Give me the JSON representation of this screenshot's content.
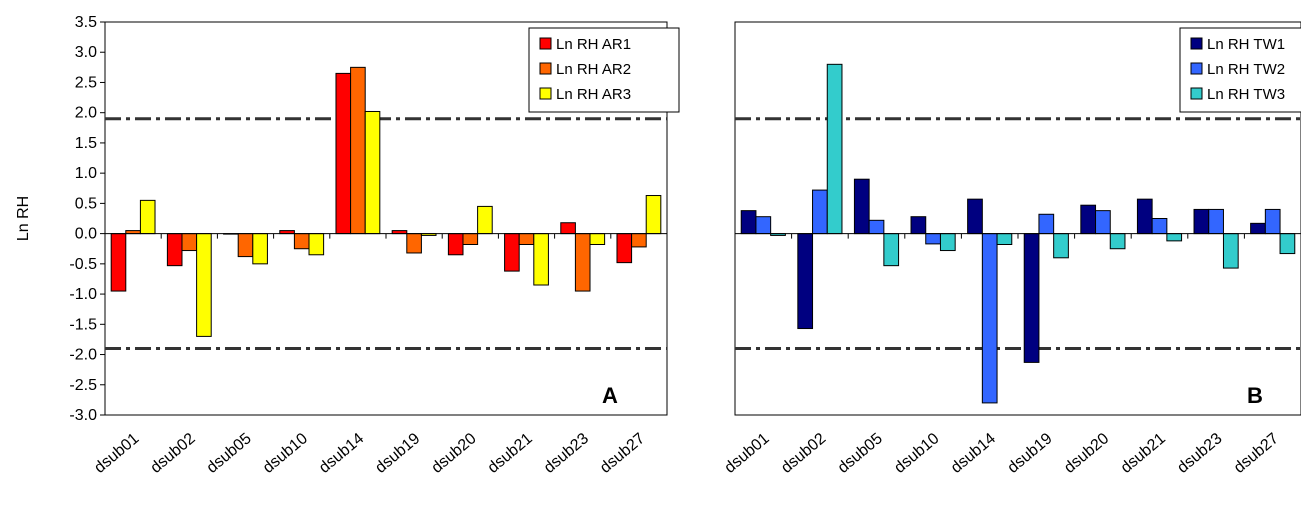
{
  "chart_data": [
    {
      "type": "bar",
      "panel_label": "A",
      "ylabel": "Ln RH",
      "ylim": [
        -3.0,
        3.5
      ],
      "y_ticks": [
        "3.5",
        "3.0",
        "2.5",
        "2.0",
        "1.5",
        "1.0",
        "0.5",
        "0.0",
        "-0.5",
        "-1.0",
        "-1.5",
        "-2.0",
        "-2.5",
        "-3.0"
      ],
      "categories": [
        "dsub01",
        "dsub02",
        "dsub05",
        "dsub10",
        "dsub14",
        "dsub19",
        "dsub20",
        "dsub21",
        "dsub23",
        "dsub27"
      ],
      "threshold_lines": [
        1.9,
        -1.9
      ],
      "legend_position": "top-right",
      "series": [
        {
          "name": "Ln RH AR1",
          "color": "#ff0000",
          "values": [
            -0.95,
            -0.53,
            0.0,
            0.05,
            2.65,
            0.05,
            -0.35,
            -0.62,
            0.18,
            -0.48
          ]
        },
        {
          "name": "Ln RH AR2",
          "color": "#ff6600",
          "values": [
            0.05,
            -0.28,
            -0.38,
            -0.25,
            2.75,
            -0.32,
            -0.18,
            -0.18,
            -0.95,
            -0.22
          ]
        },
        {
          "name": "Ln RH AR3",
          "color": "#ffff00",
          "values": [
            0.55,
            -1.7,
            -0.5,
            -0.35,
            2.02,
            -0.03,
            0.45,
            -0.85,
            -0.18,
            0.63
          ]
        }
      ]
    },
    {
      "type": "bar",
      "panel_label": "B",
      "ylim": [
        -3.0,
        3.5
      ],
      "categories": [
        "dsub01",
        "dsub02",
        "dsub05",
        "dsub10",
        "dsub14",
        "dsub19",
        "dsub20",
        "dsub21",
        "dsub23",
        "dsub27"
      ],
      "threshold_lines": [
        1.9,
        -1.9
      ],
      "legend_position": "top-right",
      "series": [
        {
          "name": "Ln RH TW1",
          "color": "#000080",
          "values": [
            0.38,
            -1.57,
            0.9,
            0.28,
            0.57,
            -2.13,
            0.47,
            0.57,
            0.4,
            0.17
          ]
        },
        {
          "name": "Ln RH TW2",
          "color": "#3366ff",
          "values": [
            0.28,
            0.72,
            0.22,
            -0.17,
            -2.8,
            0.32,
            0.38,
            0.25,
            0.4,
            0.4
          ]
        },
        {
          "name": "Ln RH TW3",
          "color": "#33cccc",
          "values": [
            -0.03,
            2.8,
            -0.53,
            -0.28,
            -0.18,
            -0.4,
            -0.25,
            -0.12,
            -0.57,
            -0.33
          ]
        }
      ]
    }
  ]
}
